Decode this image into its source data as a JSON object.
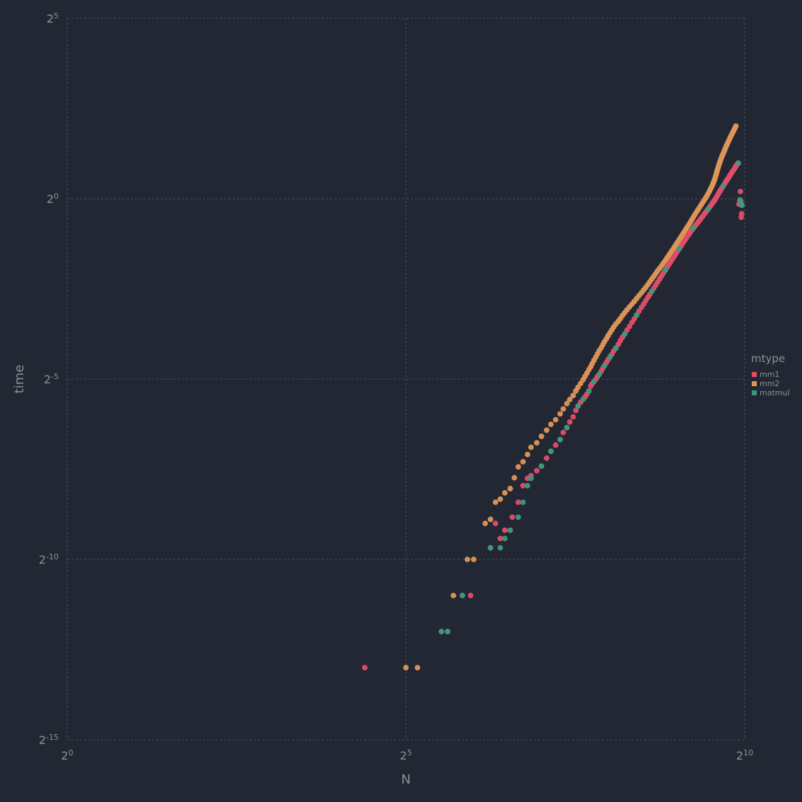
{
  "chart_data": {
    "type": "scatter",
    "xlabel": "N",
    "ylabel": "time",
    "x_scale": "log2",
    "y_scale": "log2",
    "xlim": [
      1,
      1024
    ],
    "ylim": [
      3.0517578125e-05,
      32
    ],
    "x_ticks": [
      {
        "value": 1,
        "base": "2",
        "exp": "0"
      },
      {
        "value": 32,
        "base": "2",
        "exp": "5"
      },
      {
        "value": 1024,
        "base": "2",
        "exp": "10"
      }
    ],
    "y_ticks": [
      {
        "value": 32,
        "base": "2",
        "exp": "5"
      },
      {
        "value": 1,
        "base": "2",
        "exp": "0"
      },
      {
        "value": 0.03125,
        "base": "2",
        "exp": "-5"
      },
      {
        "value": 0.0009765625,
        "base": "2",
        "exp": "-10"
      },
      {
        "value": 3.0517578125e-05,
        "base": "2",
        "exp": "-15"
      }
    ],
    "grid": true,
    "legend": {
      "title": "mtype",
      "position": "right"
    },
    "series": [
      {
        "name": "mm1",
        "color": "#e04e6c",
        "points": [
          [
            21,
            0.000122
          ],
          [
            46,
            0.000244
          ],
          [
            49,
            0.000244
          ],
          [
            57,
            0.000488
          ],
          [
            62,
            0.000488
          ],
          [
            76,
            0.00122
          ],
          [
            80,
            0.00195
          ],
          [
            84,
            0.00146
          ],
          [
            88,
            0.00171
          ],
          [
            93,
            0.00171
          ],
          [
            95,
            0.0022
          ],
          [
            101,
            0.00293
          ],
          [
            106,
            0.00403
          ],
          [
            111,
            0.00464
          ],
          [
            115,
            0.00488
          ],
          [
            122,
            0.00537
          ],
          [
            128,
            0.00586
          ],
          [
            135,
            0.00684
          ],
          [
            141,
            0.00781
          ],
          [
            148,
            0.00879
          ],
          [
            155,
            0.00977
          ],
          [
            160,
            0.0112
          ],
          [
            166,
            0.0123
          ],
          [
            171,
            0.0137
          ],
          [
            177,
            0.0151
          ],
          [
            182,
            0.0171
          ],
          [
            186,
            0.0186
          ],
          [
            191,
            0.02
          ],
          [
            196,
            0.0212
          ],
          [
            200,
            0.0222
          ],
          [
            204,
            0.0234
          ],
          [
            208,
            0.0249
          ],
          [
            212,
            0.0273
          ],
          [
            215,
            0.0286
          ],
          [
            219,
            0.0298
          ],
          [
            223,
            0.0311
          ],
          [
            227,
            0.0327
          ],
          [
            231,
            0.0342
          ],
          [
            236,
            0.0363
          ],
          [
            240,
            0.0386
          ],
          [
            244,
            0.0405
          ],
          [
            249,
            0.043
          ],
          [
            253,
            0.0454
          ],
          [
            258,
            0.0479
          ],
          [
            263,
            0.0503
          ],
          [
            268,
            0.0537
          ],
          [
            274,
            0.0566
          ],
          [
            281,
            0.061
          ],
          [
            287,
            0.0654
          ],
          [
            293,
            0.0698
          ],
          [
            300,
            0.0742
          ],
          [
            307,
            0.0801
          ],
          [
            315,
            0.0859
          ],
          [
            323,
            0.0928
          ],
          [
            331,
            0.0996
          ],
          [
            339,
            0.107
          ],
          [
            347,
            0.115
          ],
          [
            356,
            0.124
          ],
          [
            364,
            0.132
          ],
          [
            372,
            0.141
          ],
          [
            380,
            0.15
          ],
          [
            388,
            0.159
          ],
          [
            396,
            0.169
          ],
          [
            404,
            0.179
          ],
          [
            412,
            0.19
          ],
          [
            420,
            0.201
          ],
          [
            429,
            0.214
          ],
          [
            438,
            0.227
          ],
          [
            446,
            0.24
          ],
          [
            455,
            0.254
          ],
          [
            463,
            0.268
          ],
          [
            472,
            0.283
          ],
          [
            480,
            0.298
          ],
          [
            489,
            0.314
          ],
          [
            498,
            0.33
          ],
          [
            506,
            0.347
          ],
          [
            515,
            0.365
          ],
          [
            524,
            0.383
          ],
          [
            533,
            0.402
          ],
          [
            542,
            0.421
          ],
          [
            551,
            0.441
          ],
          [
            560,
            0.462
          ],
          [
            569,
            0.483
          ],
          [
            579,
            0.505
          ],
          [
            588,
            0.528
          ],
          [
            597,
            0.55
          ],
          [
            606,
            0.57
          ],
          [
            615,
            0.59
          ],
          [
            625,
            0.612
          ],
          [
            635,
            0.635
          ],
          [
            645,
            0.66
          ],
          [
            655,
            0.685
          ],
          [
            665,
            0.712
          ],
          [
            676,
            0.74
          ],
          [
            686,
            0.768
          ],
          [
            696,
            0.796
          ],
          [
            705,
            0.822
          ],
          [
            714,
            0.848
          ],
          [
            722,
            0.873
          ],
          [
            730,
            0.898
          ],
          [
            737,
            0.922
          ],
          [
            744,
            0.945
          ],
          [
            750,
            0.966
          ],
          [
            756,
            0.986
          ],
          [
            761,
            1.005
          ],
          [
            766,
            1.025
          ],
          [
            770,
            1.045
          ],
          [
            775,
            1.068
          ],
          [
            780,
            1.09
          ],
          [
            785,
            1.114
          ],
          [
            790,
            1.138
          ],
          [
            796,
            1.164
          ],
          [
            802,
            1.191
          ],
          [
            808,
            1.219
          ],
          [
            815,
            1.248
          ],
          [
            822,
            1.278
          ],
          [
            829,
            1.31
          ],
          [
            836,
            1.343
          ],
          [
            843,
            1.378
          ],
          [
            850,
            1.414
          ],
          [
            858,
            1.452
          ],
          [
            866,
            1.491
          ],
          [
            874,
            1.532
          ],
          [
            882,
            1.575
          ],
          [
            891,
            1.62
          ],
          [
            900,
            1.666
          ],
          [
            909,
            1.714
          ],
          [
            918,
            1.764
          ],
          [
            927,
            1.816
          ],
          [
            936,
            1.87
          ],
          [
            946,
            1.925
          ],
          [
            956,
            1.983
          ],
          [
            966,
            0.9
          ],
          [
            976,
            0.95
          ],
          [
            980,
            1.15
          ],
          [
            984,
            0.95
          ],
          [
            988,
            0.7
          ],
          [
            992,
            0.75
          ]
        ]
      },
      {
        "name": "mm2",
        "color": "#e0965a",
        "points": [
          [
            32,
            0.000122
          ],
          [
            36,
            0.000122
          ],
          [
            52,
            0.000488
          ],
          [
            60,
            0.000977
          ],
          [
            64,
            0.000977
          ],
          [
            72,
            0.00195
          ],
          [
            76,
            0.00211
          ],
          [
            80,
            0.00293
          ],
          [
            84,
            0.00311
          ],
          [
            88,
            0.00351
          ],
          [
            93,
            0.00381
          ],
          [
            97,
            0.00469
          ],
          [
            101,
            0.00578
          ],
          [
            106,
            0.00638
          ],
          [
            111,
            0.00734
          ],
          [
            115,
            0.00842
          ],
          [
            122,
            0.00918
          ],
          [
            128,
            0.0104
          ],
          [
            135,
            0.0117
          ],
          [
            141,
            0.0131
          ],
          [
            148,
            0.0143
          ],
          [
            155,
            0.016
          ],
          [
            160,
            0.0176
          ],
          [
            166,
            0.0195
          ],
          [
            171,
            0.0211
          ],
          [
            177,
            0.0228
          ],
          [
            182,
            0.0249
          ],
          [
            186,
            0.0267
          ],
          [
            191,
            0.0287
          ],
          [
            196,
            0.0309
          ],
          [
            200,
            0.033
          ],
          [
            204,
            0.0351
          ],
          [
            208,
            0.0375
          ],
          [
            212,
            0.0397
          ],
          [
            215,
            0.042
          ],
          [
            219,
            0.0447
          ],
          [
            223,
            0.0476
          ],
          [
            227,
            0.0506
          ],
          [
            231,
            0.0538
          ],
          [
            236,
            0.0571
          ],
          [
            240,
            0.0606
          ],
          [
            244,
            0.0642
          ],
          [
            249,
            0.068
          ],
          [
            253,
            0.0719
          ],
          [
            258,
            0.0761
          ],
          [
            263,
            0.0804
          ],
          [
            268,
            0.085
          ],
          [
            274,
            0.0899
          ],
          [
            281,
            0.095
          ],
          [
            287,
            0.1
          ],
          [
            293,
            0.106
          ],
          [
            300,
            0.112
          ],
          [
            307,
            0.118
          ],
          [
            315,
            0.125
          ],
          [
            323,
            0.132
          ],
          [
            331,
            0.139
          ],
          [
            339,
            0.147
          ],
          [
            347,
            0.155
          ],
          [
            356,
            0.164
          ],
          [
            364,
            0.173
          ],
          [
            372,
            0.182
          ],
          [
            380,
            0.192
          ],
          [
            388,
            0.203
          ],
          [
            396,
            0.214
          ],
          [
            404,
            0.225
          ],
          [
            412,
            0.237
          ],
          [
            420,
            0.25
          ],
          [
            429,
            0.263
          ],
          [
            438,
            0.277
          ],
          [
            446,
            0.291
          ],
          [
            455,
            0.306
          ],
          [
            463,
            0.322
          ],
          [
            472,
            0.339
          ],
          [
            480,
            0.356
          ],
          [
            489,
            0.374
          ],
          [
            498,
            0.393
          ],
          [
            506,
            0.413
          ],
          [
            515,
            0.434
          ],
          [
            524,
            0.456
          ],
          [
            533,
            0.479
          ],
          [
            542,
            0.503
          ],
          [
            551,
            0.528
          ],
          [
            560,
            0.554
          ],
          [
            569,
            0.581
          ],
          [
            579,
            0.61
          ],
          [
            588,
            0.64
          ],
          [
            597,
            0.671
          ],
          [
            606,
            0.703
          ],
          [
            615,
            0.737
          ],
          [
            625,
            0.772
          ],
          [
            635,
            0.808
          ],
          [
            645,
            0.846
          ],
          [
            655,
            0.885
          ],
          [
            665,
            0.926
          ],
          [
            676,
            0.968
          ],
          [
            686,
            1.012
          ],
          [
            696,
            1.058
          ],
          [
            705,
            1.105
          ],
          [
            714,
            1.154
          ],
          [
            722,
            1.205
          ],
          [
            730,
            1.258
          ],
          [
            737,
            1.312
          ],
          [
            744,
            1.368
          ],
          [
            750,
            1.426
          ],
          [
            756,
            1.486
          ],
          [
            761,
            1.548
          ],
          [
            766,
            1.612
          ],
          [
            770,
            1.678
          ],
          [
            775,
            1.747
          ],
          [
            780,
            1.818
          ],
          [
            785,
            1.891
          ],
          [
            790,
            1.967
          ],
          [
            796,
            2.046
          ],
          [
            802,
            2.127
          ],
          [
            808,
            2.211
          ],
          [
            815,
            2.298
          ],
          [
            822,
            2.388
          ],
          [
            829,
            2.481
          ],
          [
            836,
            2.577
          ],
          [
            843,
            2.677
          ],
          [
            850,
            2.78
          ],
          [
            858,
            2.887
          ],
          [
            866,
            2.998
          ],
          [
            874,
            3.113
          ],
          [
            882,
            3.232
          ],
          [
            891,
            3.355
          ],
          [
            900,
            3.483
          ],
          [
            909,
            3.615
          ],
          [
            918,
            3.752
          ],
          [
            927,
            3.894
          ],
          [
            936,
            4.04
          ]
        ]
      },
      {
        "name": "matmul",
        "color": "#3a9b7c",
        "points": [
          [
            46,
            0.000244
          ],
          [
            49,
            0.000244
          ],
          [
            57,
            0.000488
          ],
          [
            76,
            0.00122
          ],
          [
            84,
            0.00122
          ],
          [
            88,
            0.00146
          ],
          [
            93,
            0.00171
          ],
          [
            101,
            0.0022
          ],
          [
            106,
            0.00293
          ],
          [
            111,
            0.00403
          ],
          [
            115,
            0.00464
          ],
          [
            128,
            0.00586
          ],
          [
            141,
            0.00781
          ],
          [
            155,
            0.00977
          ],
          [
            166,
            0.0123
          ],
          [
            186,
            0.0186
          ],
          [
            196,
            0.0212
          ],
          [
            208,
            0.0249
          ],
          [
            219,
            0.0298
          ],
          [
            231,
            0.0342
          ],
          [
            244,
            0.0405
          ],
          [
            258,
            0.0479
          ],
          [
            274,
            0.0566
          ],
          [
            300,
            0.0742
          ],
          [
            339,
            0.107
          ],
          [
            396,
            0.169
          ],
          [
            455,
            0.254
          ],
          [
            524,
            0.383
          ],
          [
            606,
            0.57
          ],
          [
            705,
            0.822
          ],
          [
            822,
            1.278
          ],
          [
            960,
            1.98
          ],
          [
            975,
            0.98
          ],
          [
            990,
            0.9
          ],
          [
            996,
            0.88
          ]
        ]
      }
    ]
  }
}
